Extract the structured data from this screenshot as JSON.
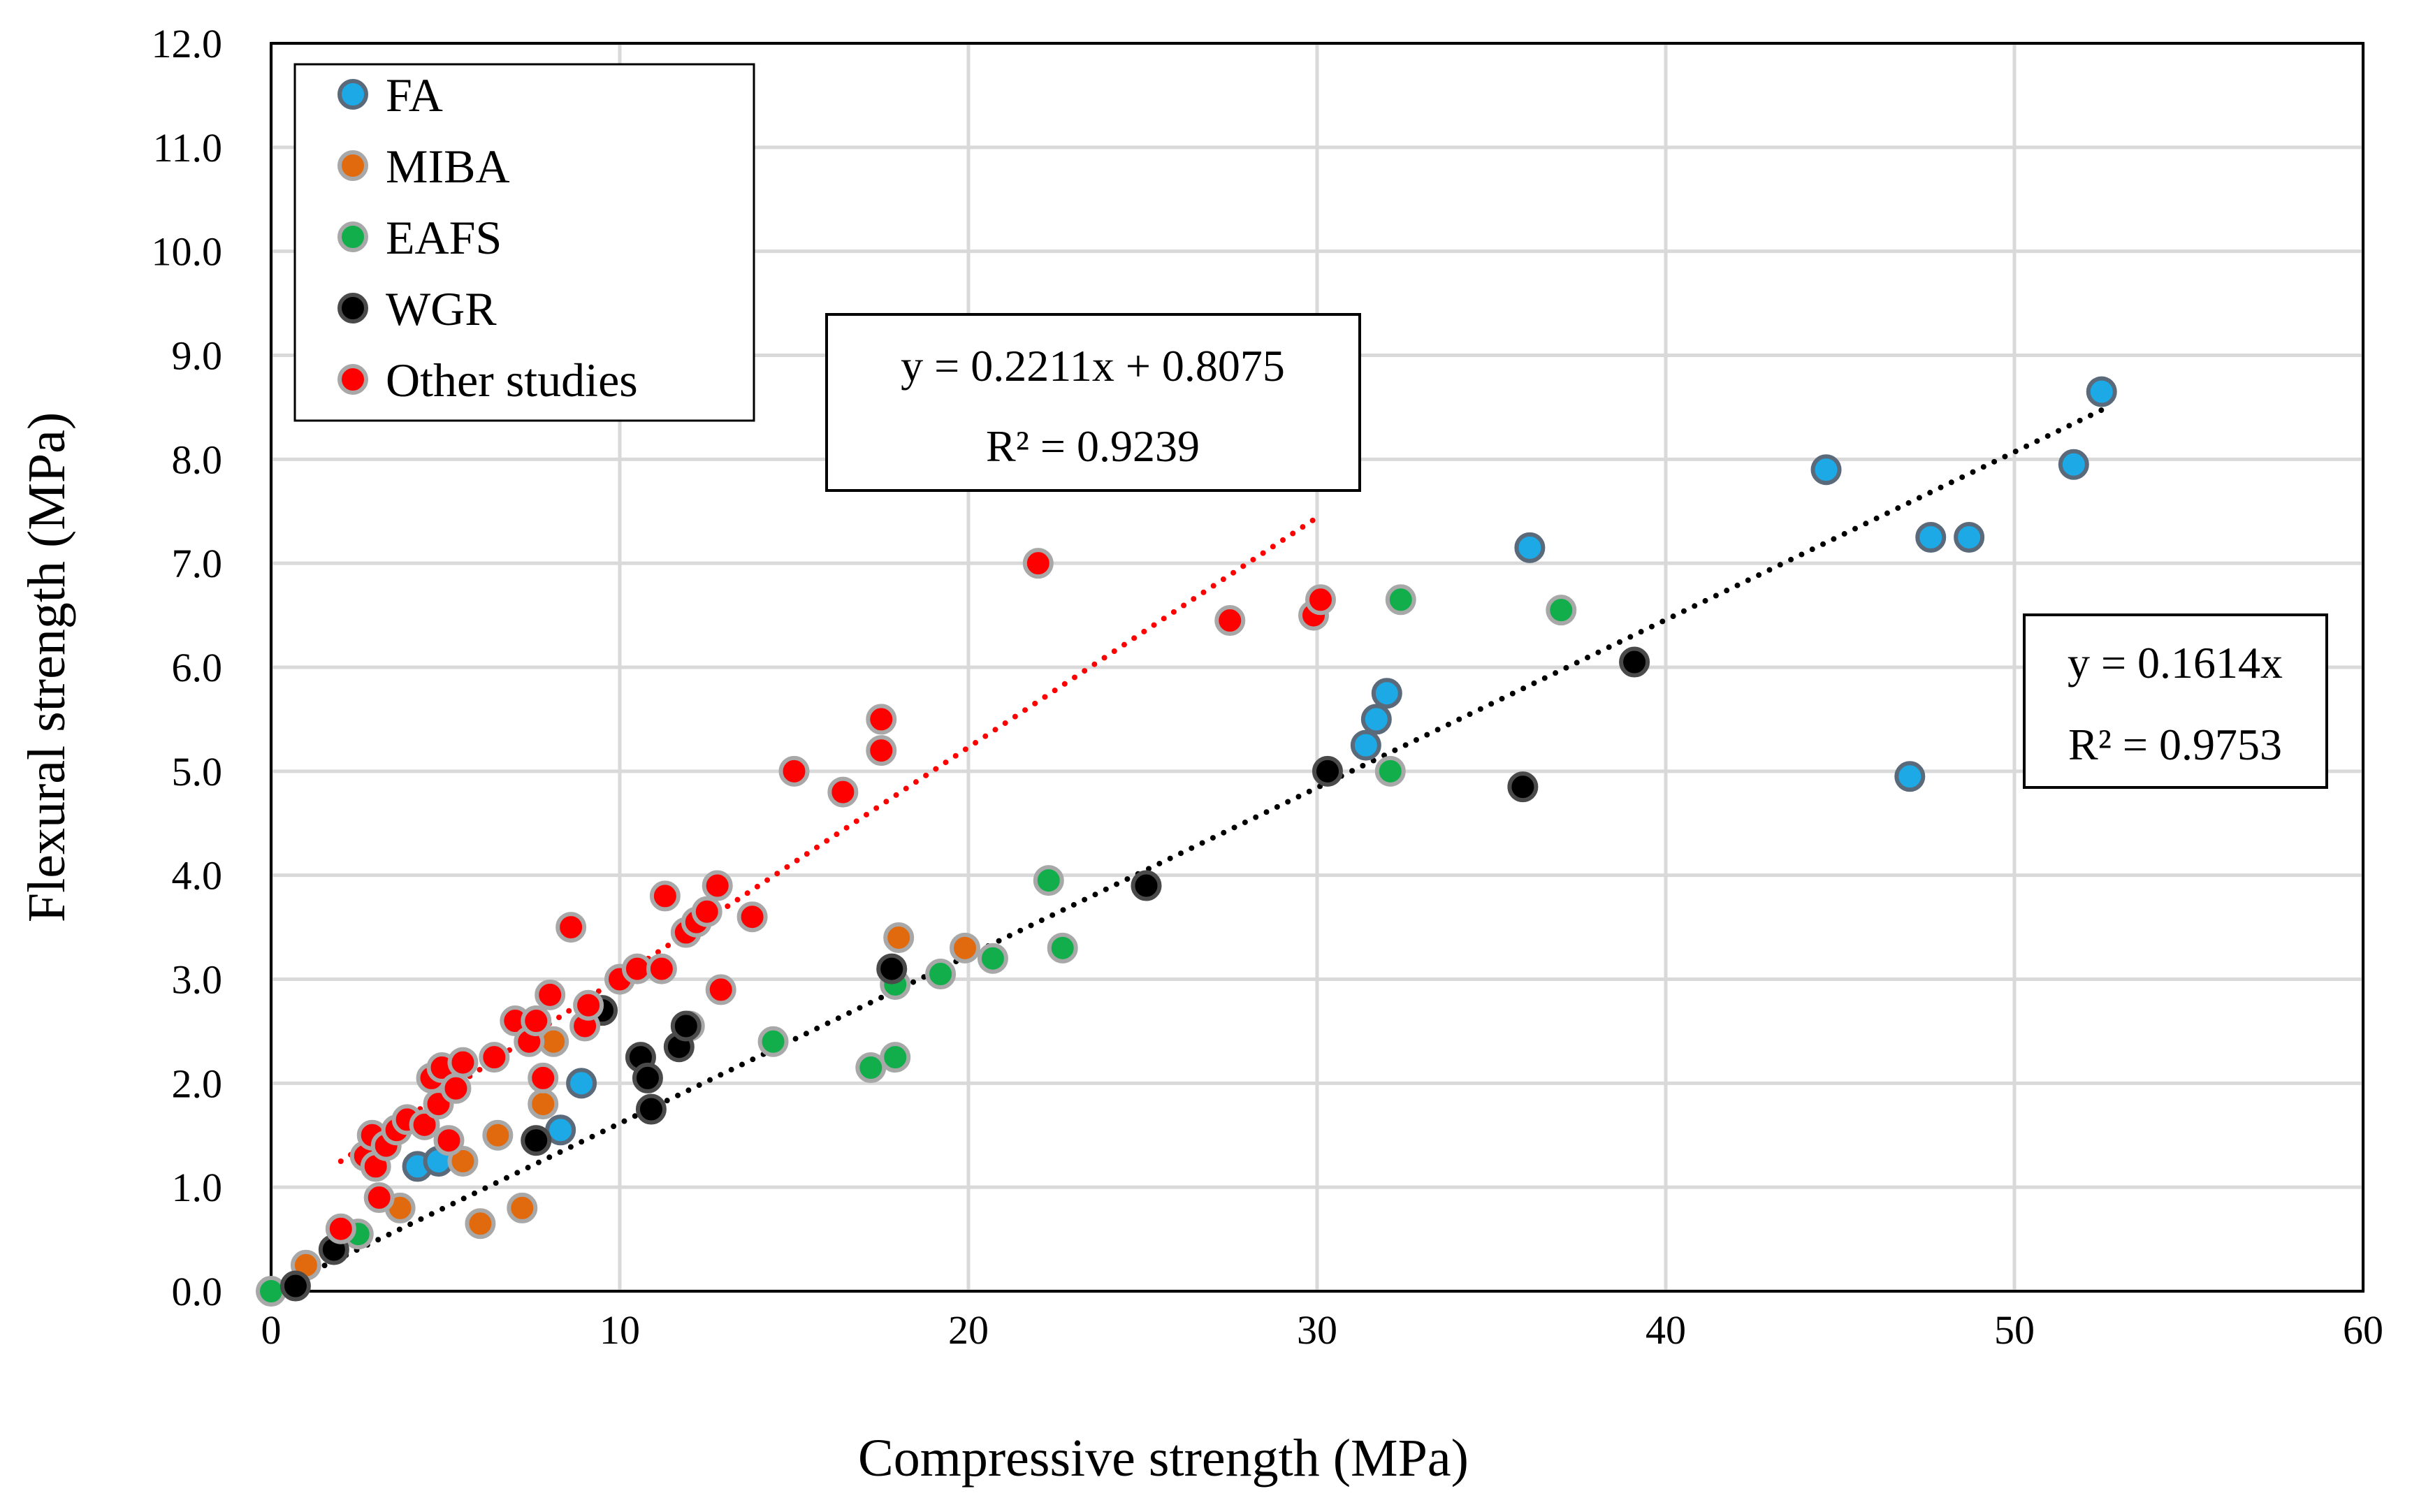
{
  "chart_data": {
    "type": "scatter",
    "title": "",
    "xlabel": "Compressive strength (MPa)",
    "ylabel": "Flexural strength (MPa)",
    "xlim": [
      0,
      60
    ],
    "ylim": [
      0,
      12
    ],
    "x_ticks": [
      "0",
      "10",
      "20",
      "30",
      "40",
      "50",
      "60"
    ],
    "y_ticks": [
      "0.0",
      "1.0",
      "2.0",
      "3.0",
      "4.0",
      "5.0",
      "6.0",
      "7.0",
      "8.0",
      "9.0",
      "10.0",
      "11.0",
      "12.0"
    ],
    "grid": true,
    "legend_position": "top-left",
    "series": [
      {
        "name": "FA",
        "color": "#1CA9E6",
        "stroke": "#5A6A7A",
        "points": [
          [
            4.2,
            1.2
          ],
          [
            4.8,
            1.25
          ],
          [
            8.3,
            1.55
          ],
          [
            8.9,
            2.0
          ],
          [
            31.4,
            5.25
          ],
          [
            31.7,
            5.5
          ],
          [
            32.0,
            5.75
          ],
          [
            36.1,
            7.15
          ],
          [
            44.6,
            7.9
          ],
          [
            47.0,
            4.95
          ],
          [
            47.6,
            7.25
          ],
          [
            48.7,
            7.25
          ],
          [
            51.7,
            7.95
          ],
          [
            52.5,
            8.65
          ]
        ]
      },
      {
        "name": "MIBA",
        "color": "#E26A0E",
        "stroke": "#A8A8A8",
        "points": [
          [
            1.0,
            0.25
          ],
          [
            3.7,
            0.8
          ],
          [
            5.5,
            1.25
          ],
          [
            6.0,
            0.65
          ],
          [
            6.5,
            1.5
          ],
          [
            7.2,
            0.8
          ],
          [
            7.8,
            1.8
          ],
          [
            8.1,
            2.4
          ],
          [
            12.0,
            2.55
          ],
          [
            18.0,
            3.4
          ],
          [
            19.9,
            3.3
          ]
        ]
      },
      {
        "name": "EAFS",
        "color": "#12AE4B",
        "stroke": "#A8A8A8",
        "points": [
          [
            0.0,
            0.0
          ],
          [
            2.5,
            0.55
          ],
          [
            14.4,
            2.4
          ],
          [
            17.2,
            2.15
          ],
          [
            17.9,
            2.25
          ],
          [
            17.9,
            2.95
          ],
          [
            19.2,
            3.05
          ],
          [
            20.7,
            3.2
          ],
          [
            22.3,
            3.95
          ],
          [
            22.7,
            3.3
          ],
          [
            32.1,
            5.0
          ],
          [
            32.4,
            6.65
          ],
          [
            37.0,
            6.55
          ]
        ]
      },
      {
        "name": "WGR",
        "color": "#000000",
        "stroke": "#4A4A4A",
        "points": [
          [
            0.7,
            0.05
          ],
          [
            1.8,
            0.4
          ],
          [
            7.6,
            1.45
          ],
          [
            9.5,
            2.7
          ],
          [
            10.6,
            2.25
          ],
          [
            10.8,
            2.05
          ],
          [
            10.9,
            1.75
          ],
          [
            11.7,
            2.35
          ],
          [
            11.9,
            2.55
          ],
          [
            17.8,
            3.1
          ],
          [
            25.1,
            3.9
          ],
          [
            30.3,
            5.0
          ],
          [
            35.9,
            4.85
          ],
          [
            39.1,
            6.05
          ]
        ]
      },
      {
        "name": "Other studies",
        "color": "#FF0000",
        "stroke": "#A8A8A8",
        "points": [
          [
            2.0,
            0.6
          ],
          [
            2.7,
            1.3
          ],
          [
            2.9,
            1.5
          ],
          [
            3.0,
            1.2
          ],
          [
            3.1,
            0.9
          ],
          [
            3.3,
            1.4
          ],
          [
            3.6,
            1.55
          ],
          [
            3.9,
            1.65
          ],
          [
            4.4,
            1.6
          ],
          [
            4.6,
            2.05
          ],
          [
            4.8,
            1.8
          ],
          [
            4.9,
            2.15
          ],
          [
            5.1,
            1.45
          ],
          [
            5.3,
            1.95
          ],
          [
            5.5,
            2.2
          ],
          [
            6.4,
            2.25
          ],
          [
            7.0,
            2.6
          ],
          [
            7.4,
            2.4
          ],
          [
            7.6,
            2.6
          ],
          [
            7.8,
            2.05
          ],
          [
            8.0,
            2.85
          ],
          [
            8.6,
            3.5
          ],
          [
            9.0,
            2.55
          ],
          [
            9.1,
            2.75
          ],
          [
            10.0,
            3.0
          ],
          [
            10.5,
            3.1
          ],
          [
            11.2,
            3.1
          ],
          [
            11.3,
            3.8
          ],
          [
            11.9,
            3.45
          ],
          [
            12.2,
            3.55
          ],
          [
            12.5,
            3.65
          ],
          [
            12.8,
            3.9
          ],
          [
            12.9,
            2.9
          ],
          [
            13.8,
            3.6
          ],
          [
            15.0,
            5.0
          ],
          [
            16.4,
            4.8
          ],
          [
            17.5,
            5.2
          ],
          [
            17.5,
            5.5
          ],
          [
            22.0,
            7.0
          ],
          [
            27.5,
            6.45
          ],
          [
            29.9,
            6.5
          ],
          [
            30.1,
            6.65
          ]
        ]
      }
    ],
    "trendlines": [
      {
        "series": "Other studies",
        "slope": 0.2211,
        "intercept": 0.8075,
        "x_range": [
          2.0,
          30.0
        ],
        "color": "#FF0000",
        "equation": "y = 0.2211x + 0.8075",
        "r_squared": "R² = 0.9239"
      },
      {
        "series": "FA / MIBA / EAFS / WGR",
        "slope": 0.1614,
        "intercept": 0,
        "x_range": [
          0.0,
          52.5
        ],
        "color": "#000000",
        "equation": "y = 0.1614x",
        "r_squared": "R² = 0.9753"
      }
    ]
  }
}
